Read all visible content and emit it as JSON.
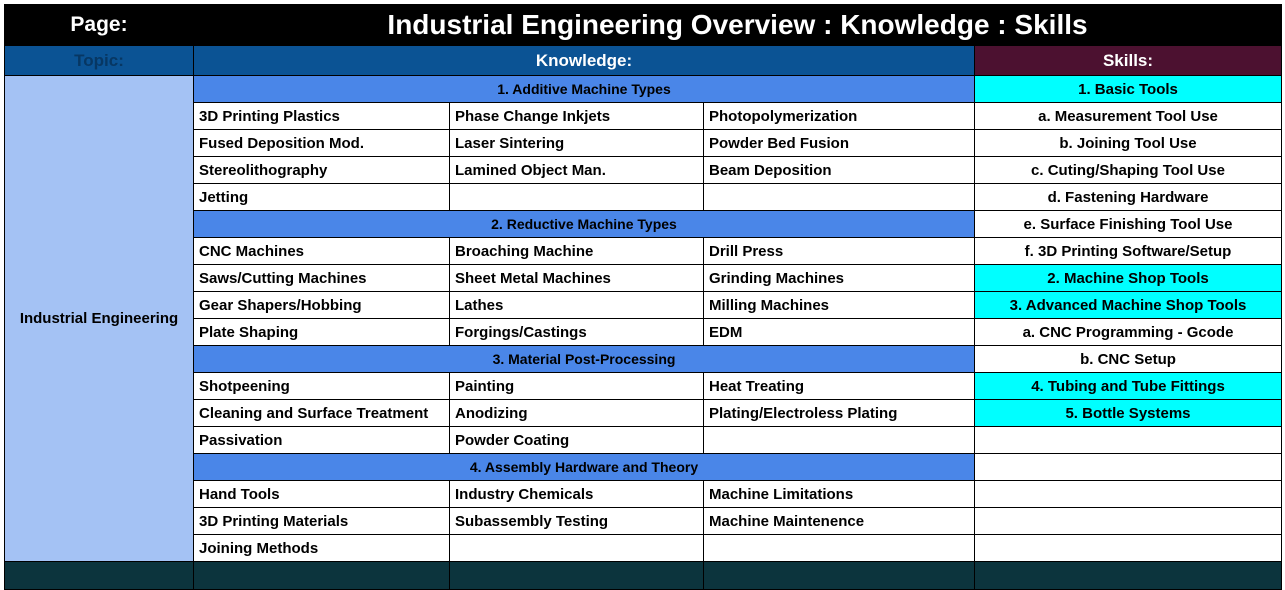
{
  "header": {
    "page_label": "Page:",
    "title": "Industrial Engineering Overview : Knowledge : Skills",
    "topic_label": "Topic:",
    "knowledge_label": "Knowledge:",
    "skills_label": "Skills:"
  },
  "topic": "Industrial Engineering",
  "knowledge": {
    "sections": [
      {
        "title": "1. Additive Machine Types",
        "rows": [
          [
            "3D Printing Plastics",
            "Phase Change Inkjets",
            "Photopolymerization"
          ],
          [
            "Fused Deposition Mod.",
            "Laser Sintering",
            "Powder Bed Fusion"
          ],
          [
            "Stereolithography",
            "Lamined Object Man.",
            "Beam Deposition"
          ],
          [
            "Jetting",
            "",
            ""
          ]
        ]
      },
      {
        "title": "2. Reductive Machine Types",
        "rows": [
          [
            "CNC Machines",
            "Broaching Machine",
            "Drill Press"
          ],
          [
            "Saws/Cutting Machines",
            "Sheet Metal Machines",
            "Grinding Machines"
          ],
          [
            "Gear Shapers/Hobbing",
            "Lathes",
            "Milling Machines"
          ],
          [
            "Plate Shaping",
            "Forgings/Castings",
            "EDM"
          ]
        ]
      },
      {
        "title": "3. Material Post-Processing",
        "rows": [
          [
            "Shotpeening",
            "Painting",
            "Heat Treating"
          ],
          [
            "Cleaning and Surface Treatment",
            "Anodizing",
            "Plating/Electroless Plating"
          ],
          [
            "Passivation",
            "Powder Coating",
            ""
          ]
        ]
      },
      {
        "title": "4. Assembly Hardware and Theory",
        "rows": [
          [
            "Hand Tools",
            "Industry Chemicals",
            "Machine Limitations"
          ],
          [
            "3D Printing Materials",
            "Subassembly Testing",
            "Machine Maintenence"
          ],
          [
            "Joining Methods",
            "",
            ""
          ]
        ]
      }
    ]
  },
  "skills": [
    {
      "text": "1. Basic Tools",
      "highlight": true
    },
    {
      "text": "a. Measurement Tool Use",
      "highlight": false
    },
    {
      "text": "b. Joining Tool Use",
      "highlight": false
    },
    {
      "text": "c. Cuting/Shaping Tool Use",
      "highlight": false
    },
    {
      "text": "d. Fastening Hardware",
      "highlight": false
    },
    {
      "text": "e. Surface Finishing Tool Use",
      "highlight": false
    },
    {
      "text": "f. 3D Printing Software/Setup",
      "highlight": false
    },
    {
      "text": "2. Machine Shop Tools",
      "highlight": true
    },
    {
      "text": "3. Advanced Machine Shop Tools",
      "highlight": true
    },
    {
      "text": "a. CNC Programming - Gcode",
      "highlight": false
    },
    {
      "text": "b. CNC Setup",
      "highlight": false
    },
    {
      "text": "4. Tubing and Tube Fittings",
      "highlight": true
    },
    {
      "text": "5. Bottle Systems",
      "highlight": true
    },
    {
      "text": "",
      "highlight": false
    },
    {
      "text": "",
      "highlight": false
    },
    {
      "text": "",
      "highlight": false
    },
    {
      "text": "",
      "highlight": false
    },
    {
      "text": "",
      "highlight": false
    }
  ],
  "colors": {
    "title_bg": "#000000",
    "header_blue": "#0b5394",
    "skills_header": "#4c1130",
    "topic_bg": "#a4c2f4",
    "section_bg": "#4a86e8",
    "skill_highlight": "#00ffff",
    "footer_bg": "#0c343d"
  }
}
